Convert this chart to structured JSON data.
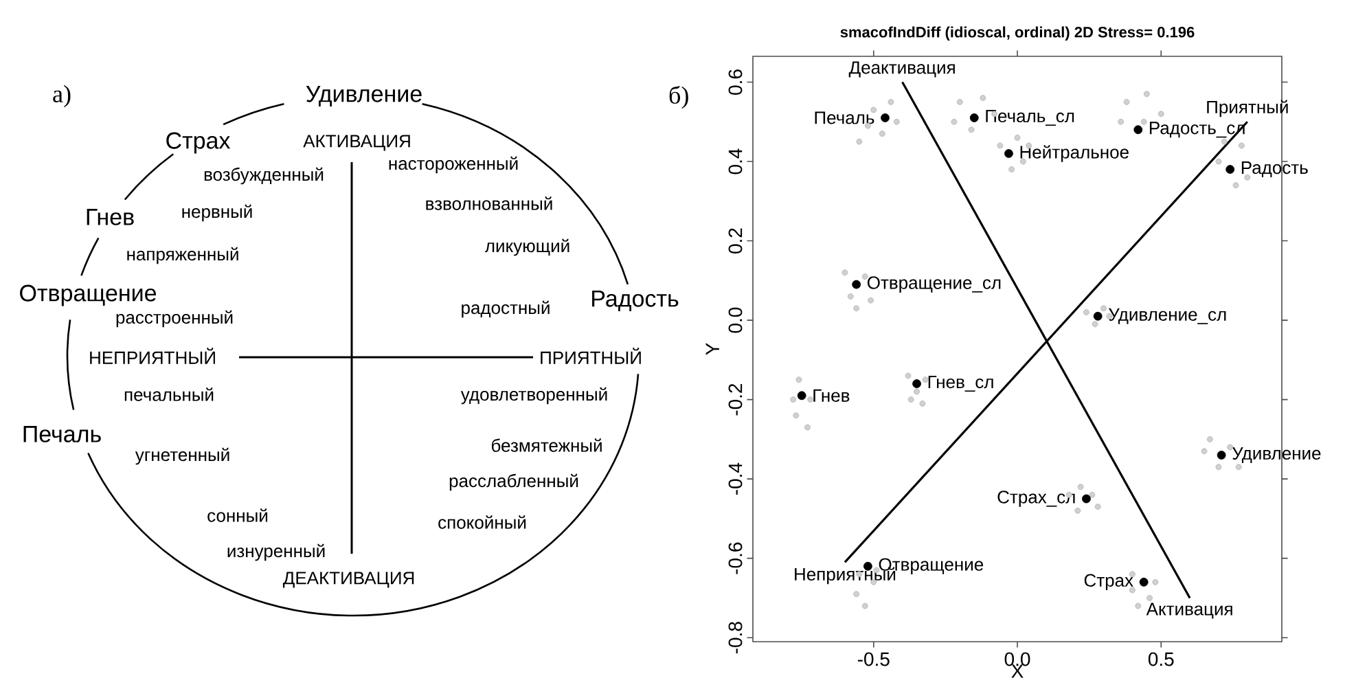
{
  "chart_data": [
    {
      "type": "other",
      "title": "а)",
      "annotations": [
        "Удивление",
        "Страх",
        "АКТИВАЦИЯ",
        "возбужденный",
        "настороженный",
        "Гнев",
        "нервный",
        "взволнованный",
        "напряженный",
        "ликующий",
        "Отвращение",
        "расстроенный",
        "радостный",
        "Радость",
        "НЕПРИЯТНЫЙ",
        "ПРИЯТНЫЙ",
        "печальный",
        "удовлетворенный",
        "Печаль",
        "угнетенный",
        "безмятежный",
        "расслабленный",
        "сонный",
        "спокойный",
        "изнуренный",
        "ДЕАКТИВАЦИЯ"
      ]
    },
    {
      "type": "scatter",
      "title": "smacofIndDiff (idioscal, ordinal) 2D Stress= 0.196",
      "xlabel": "X",
      "ylabel": "Y",
      "xlim": [
        -0.92,
        0.92
      ],
      "ylim": [
        -0.81,
        0.665
      ],
      "xticks": [
        -0.5,
        {
          "value": 0,
          "label": "0.0"
        },
        0.5
      ],
      "yticks": [
        -0.8,
        -0.6,
        -0.4,
        -0.2,
        {
          "value": 0,
          "label": "0.0"
        },
        0.2,
        0.4,
        0.6
      ],
      "series": [
        {
          "color": "#b0b0b0",
          "marker": "circle",
          "x": [
            -0.5,
            -0.44,
            -0.52,
            -0.42,
            -0.47,
            -0.55,
            -0.2,
            -0.12,
            -0.08,
            -0.22,
            -0.16,
            0.0,
            -0.06,
            0.02,
            -0.02,
            0.04,
            0.38,
            0.45,
            0.5,
            0.36,
            0.44,
            0.72,
            0.78,
            0.7,
            0.8,
            0.76,
            -0.6,
            -0.53,
            -0.58,
            -0.51,
            -0.56,
            0.24,
            0.32,
            0.27,
            0.3,
            -0.76,
            -0.72,
            -0.77,
            -0.73,
            -0.78,
            -0.38,
            -0.32,
            -0.37,
            -0.33,
            -0.35,
            0.67,
            0.74,
            0.7,
            0.77,
            0.65,
            0.18,
            0.22,
            0.28,
            0.21,
            0.26,
            -0.55,
            -0.5,
            -0.56,
            -0.49,
            -0.53,
            0.4,
            0.46,
            0.42,
            0.48,
            0.4
          ],
          "values": [
            0.53,
            0.55,
            0.49,
            0.5,
            0.47,
            0.45,
            0.55,
            0.56,
            0.52,
            0.5,
            0.48,
            0.46,
            0.44,
            0.4,
            0.38,
            0.44,
            0.55,
            0.57,
            0.52,
            0.5,
            0.5,
            0.45,
            0.44,
            0.4,
            0.36,
            0.34,
            0.12,
            0.11,
            0.06,
            0.05,
            0.03,
            0.02,
            0.01,
            -0.01,
            0.03,
            -0.15,
            -0.2,
            -0.24,
            -0.27,
            -0.2,
            -0.14,
            -0.15,
            -0.2,
            -0.21,
            -0.18,
            -0.3,
            -0.32,
            -0.37,
            -0.37,
            -0.33,
            -0.44,
            -0.42,
            -0.47,
            -0.48,
            -0.44,
            -0.64,
            -0.66,
            -0.69,
            -0.63,
            -0.72,
            -0.68,
            -0.7,
            -0.72,
            -0.66,
            -0.64
          ]
        },
        {
          "color": "#000000",
          "type": "line",
          "marker": "none",
          "x": [
            -0.4,
            0.6
          ],
          "values": [
            0.6,
            -0.7
          ]
        },
        {
          "color": "#000000",
          "type": "line",
          "marker": "none",
          "x": [
            -0.6,
            0.8
          ],
          "values": [
            -0.61,
            0.5
          ]
        },
        {
          "color": "#000000",
          "marker": "circle",
          "x": [
            -0.46,
            -0.15,
            -0.03,
            0.42,
            0.74,
            -0.56,
            0.28,
            -0.75,
            -0.35,
            0.71,
            0.24,
            -0.52,
            0.44
          ],
          "values": [
            0.51,
            0.51,
            0.42,
            0.48,
            0.38,
            0.09,
            0.01,
            -0.19,
            -0.16,
            -0.34,
            -0.45,
            -0.62,
            -0.66
          ]
        }
      ],
      "annotations": [
        "б)",
        {
          "text": "Печаль",
          "x": -0.46,
          "y": 0.51
        },
        {
          "text": "Печаль_сл",
          "x": -0.15,
          "y": 0.51
        },
        {
          "text": "Нейтральное",
          "x": -0.03,
          "y": 0.42
        },
        {
          "text": "Радость_сл",
          "x": 0.42,
          "y": 0.48
        },
        {
          "text": "Радость",
          "x": 0.74,
          "y": 0.38
        },
        {
          "text": "Отвращение_сл",
          "x": -0.56,
          "y": 0.09
        },
        {
          "text": "Удивление_сл",
          "x": 0.28,
          "y": 0.01
        },
        {
          "text": "Гнев",
          "x": -0.75,
          "y": -0.19
        },
        {
          "text": "Гнев_сл",
          "x": -0.35,
          "y": -0.16
        },
        {
          "text": "Удивление",
          "x": 0.71,
          "y": -0.34
        },
        {
          "text": "Страх_сл",
          "x": 0.24,
          "y": -0.45
        },
        {
          "text": "Отвращение",
          "x": -0.52,
          "y": -0.62
        },
        {
          "text": "Страх",
          "x": 0.44,
          "y": -0.66
        },
        {
          "text": "Деактивация",
          "x": -0.4,
          "y": 0.6
        },
        {
          "text": "Активация",
          "x": 0.6,
          "y": -0.7
        },
        {
          "text": "Неприятный",
          "x": -0.6,
          "y": -0.61
        },
        {
          "text": "Приятный",
          "x": 0.8,
          "y": 0.5
        }
      ]
    }
  ]
}
